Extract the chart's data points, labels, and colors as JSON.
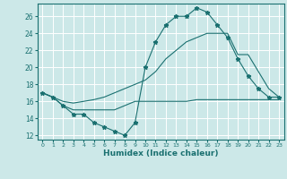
{
  "xlabel": "Humidex (Indice chaleur)",
  "background_color": "#cce8e8",
  "line_color": "#1a7070",
  "grid_color": "#ffffff",
  "xlim": [
    -0.5,
    23.5
  ],
  "ylim": [
    11.5,
    27.5
  ],
  "xticks": [
    0,
    1,
    2,
    3,
    4,
    5,
    6,
    7,
    8,
    9,
    10,
    11,
    12,
    13,
    14,
    15,
    16,
    17,
    18,
    19,
    20,
    21,
    22,
    23
  ],
  "yticks": [
    12,
    14,
    16,
    18,
    20,
    22,
    24,
    26
  ],
  "series1_x": [
    0,
    1,
    2,
    3,
    4,
    5,
    6,
    7,
    8,
    9,
    10,
    11,
    12,
    13,
    14,
    15,
    16,
    17,
    18,
    19,
    20,
    21,
    22,
    23
  ],
  "series1_y": [
    17.0,
    16.5,
    15.5,
    14.5,
    14.5,
    13.5,
    13.0,
    12.5,
    12.0,
    13.5,
    20.0,
    23.0,
    25.0,
    26.0,
    26.0,
    27.0,
    26.5,
    25.0,
    23.5,
    21.0,
    19.0,
    17.5,
    16.5,
    16.5
  ],
  "series2_x": [
    0,
    1,
    2,
    3,
    4,
    5,
    6,
    7,
    8,
    9,
    10,
    11,
    12,
    13,
    14,
    15,
    16,
    17,
    18,
    19,
    20,
    21,
    22,
    23
  ],
  "series2_y": [
    17.0,
    16.5,
    15.5,
    15.0,
    15.0,
    15.0,
    15.0,
    15.0,
    15.5,
    16.0,
    16.0,
    16.0,
    16.0,
    16.0,
    16.0,
    16.2,
    16.2,
    16.2,
    16.2,
    16.2,
    16.2,
    16.2,
    16.2,
    16.2
  ],
  "series3_x": [
    0,
    1,
    2,
    3,
    4,
    5,
    6,
    7,
    8,
    9,
    10,
    11,
    12,
    13,
    14,
    15,
    16,
    17,
    18,
    19,
    20,
    21,
    22,
    23
  ],
  "series3_y": [
    17.0,
    16.5,
    16.0,
    15.8,
    16.0,
    16.2,
    16.5,
    17.0,
    17.5,
    18.0,
    18.5,
    19.5,
    21.0,
    22.0,
    23.0,
    23.5,
    24.0,
    24.0,
    24.0,
    21.5,
    21.5,
    19.5,
    17.5,
    16.5
  ]
}
